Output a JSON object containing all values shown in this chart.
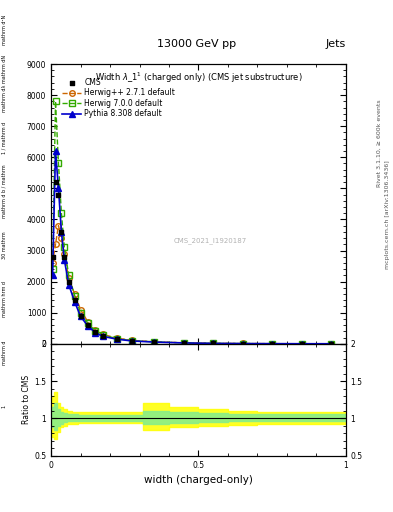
{
  "title": "Width $\\lambda\\_1^1$ (charged only) (CMS jet substructure)",
  "top_label": "13000 GeV pp",
  "top_right_label": "Jets",
  "right_label1": "Rivet 3.1.10, ≥ 600k events",
  "right_label2": "mcplots.cern.ch [arXiv:1306.3436]",
  "watermark": "CMS_2021_I1920187",
  "xlabel": "width (charged-only)",
  "ylabel_lines": [
    "mathrm d^2N",
    "mathrm d lambda, mathrm d N",
    "1 / mathrm d",
    "mathrm d b / mathrm",
    "30 mathrm d",
    "mathrm hrm d",
    "mathrm d",
    "1"
  ],
  "ratio_ylabel": "Ratio to CMS",
  "ylim_main": [
    0,
    9000
  ],
  "ylim_ratio": [
    0.5,
    2.0
  ],
  "xlim": [
    0.0,
    1.0
  ],
  "yticks_main": [
    0,
    1000,
    2000,
    3000,
    4000,
    5000,
    6000,
    7000,
    8000,
    9000
  ],
  "ytick_labels_main": [
    "0",
    "1000",
    "2000",
    "3000",
    "4000",
    "5000",
    "6000",
    "7000",
    "8000",
    "9000"
  ],
  "x_data": [
    0.005,
    0.015,
    0.025,
    0.035,
    0.045,
    0.06,
    0.08,
    0.1,
    0.125,
    0.15,
    0.175,
    0.225,
    0.275,
    0.35,
    0.45,
    0.55,
    0.65,
    0.75,
    0.85,
    0.95
  ],
  "cms_y": [
    2800,
    5200,
    4800,
    3600,
    2800,
    2000,
    1400,
    900,
    600,
    380,
    260,
    160,
    100,
    60,
    30,
    15,
    8,
    4,
    2,
    1
  ],
  "herwig_pp_y": [
    2600,
    3200,
    3800,
    3400,
    2900,
    2100,
    1600,
    1100,
    700,
    450,
    300,
    180,
    110,
    65,
    32,
    16,
    9,
    4,
    2,
    1
  ],
  "herwig7_y": [
    2400,
    7800,
    5800,
    4200,
    3100,
    2200,
    1550,
    1000,
    660,
    410,
    280,
    165,
    100,
    62,
    30,
    14,
    7,
    3.5,
    1.8,
    0.9
  ],
  "pythia_y": [
    2200,
    6200,
    5000,
    3600,
    2700,
    1900,
    1350,
    880,
    570,
    360,
    240,
    145,
    90,
    55,
    27,
    13,
    6.5,
    3.2,
    1.5,
    0.8
  ],
  "cms_color": "#000000",
  "herwig_pp_color": "#cc6600",
  "herwig7_color": "#33aa00",
  "pythia_color": "#0000cc",
  "ratio_yellow_lower": [
    0.75,
    0.72,
    0.82,
    0.88,
    0.9,
    0.92,
    0.93,
    0.94,
    0.94,
    0.94,
    0.94,
    0.94,
    0.94,
    0.85,
    0.88,
    0.9,
    0.91,
    0.92,
    0.92,
    0.92
  ],
  "ratio_yellow_upper": [
    1.3,
    1.35,
    1.2,
    1.15,
    1.12,
    1.1,
    1.09,
    1.08,
    1.08,
    1.08,
    1.08,
    1.08,
    1.08,
    1.2,
    1.15,
    1.12,
    1.1,
    1.08,
    1.08,
    1.08
  ],
  "ratio_green_lower": [
    0.88,
    0.85,
    0.9,
    0.93,
    0.95,
    0.96,
    0.965,
    0.97,
    0.97,
    0.97,
    0.97,
    0.97,
    0.97,
    0.92,
    0.94,
    0.95,
    0.96,
    0.965,
    0.965,
    0.965
  ],
  "ratio_green_upper": [
    1.15,
    1.2,
    1.12,
    1.09,
    1.07,
    1.06,
    1.055,
    1.05,
    1.05,
    1.05,
    1.05,
    1.05,
    1.05,
    1.1,
    1.08,
    1.07,
    1.06,
    1.055,
    1.055,
    1.055
  ]
}
